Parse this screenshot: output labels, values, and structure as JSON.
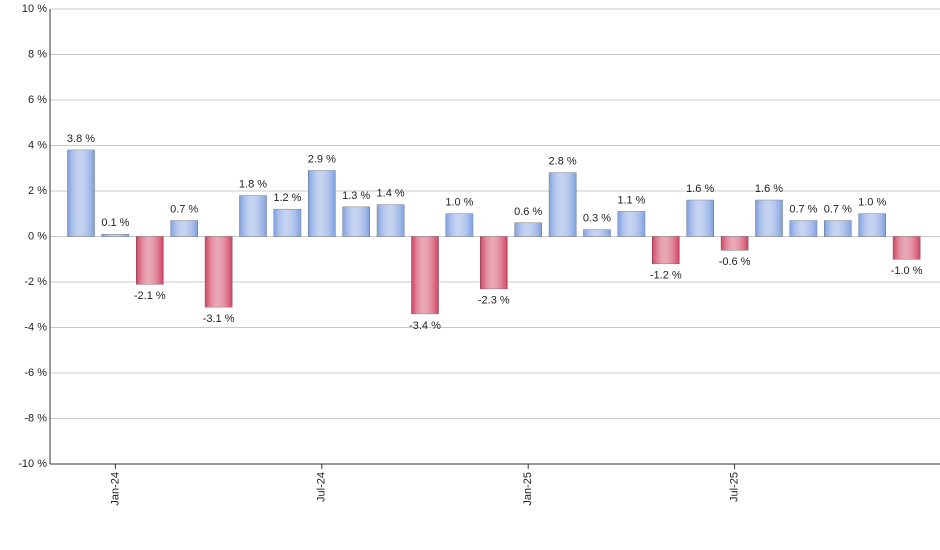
{
  "chart_data": {
    "type": "bar",
    "categories": [
      null,
      "Jan-24",
      null,
      null,
      null,
      null,
      null,
      "Jul-24",
      null,
      null,
      null,
      null,
      null,
      "Jan-25",
      null,
      null,
      null,
      null,
      null,
      "Jul-25",
      null,
      null,
      null,
      null,
      null
    ],
    "values": [
      3.8,
      0.1,
      -2.1,
      0.7,
      -3.1,
      1.8,
      1.2,
      2.9,
      1.3,
      1.4,
      -3.4,
      1.0,
      -2.3,
      0.6,
      2.8,
      0.3,
      1.1,
      -1.2,
      1.6,
      -0.6,
      1.6,
      0.7,
      0.7,
      1.0,
      -1.0
    ],
    "value_labels": [
      "3.8 %",
      "0.1 %",
      "-2.1 %",
      "0.7 %",
      "-3.1 %",
      "1.8 %",
      "1.2 %",
      "2.9 %",
      "1.3 %",
      "1.4 %",
      "-3.4 %",
      "1.0 %",
      "-2.3 %",
      "0.6 %",
      "2.8 %",
      "0.3 %",
      "1.1 %",
      "-1.2 %",
      "1.6 %",
      "-0.6 %",
      "1.6 %",
      "0.7 %",
      "0.7 %",
      "1.0 %",
      "-1.0 %"
    ],
    "positive_color": "#7f9fe0",
    "negative_color": "#d04060",
    "ylim": [
      -10,
      10
    ],
    "yticks": [
      {
        "value": -10,
        "label": "-10 %"
      },
      {
        "value": -8,
        "label": "-8 %"
      },
      {
        "value": -6,
        "label": "-6 %"
      },
      {
        "value": -4,
        "label": "-4 %"
      },
      {
        "value": -2,
        "label": "-2 %"
      },
      {
        "value": 0,
        "label": "0 %"
      },
      {
        "value": 2,
        "label": "2 %"
      },
      {
        "value": 4,
        "label": "4 %"
      },
      {
        "value": 6,
        "label": "6 %"
      },
      {
        "value": 8,
        "label": "8 %"
      },
      {
        "value": 10,
        "label": "10 %"
      }
    ],
    "grid": true
  }
}
